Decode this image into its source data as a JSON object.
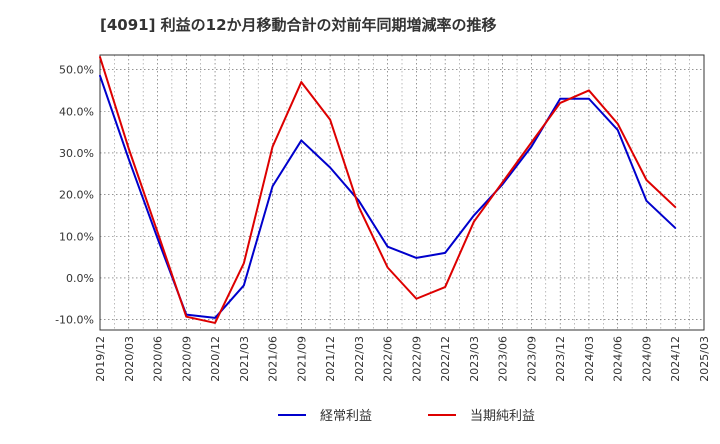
{
  "chart_data": {
    "type": "line",
    "title": "[4091]  利益の12か月移動合計の対前年同期増減率の推移",
    "xlabel": "",
    "ylabel": "",
    "ylim": [
      -12.5,
      53.5
    ],
    "yticks": [
      -10,
      0,
      10,
      20,
      30,
      40,
      50
    ],
    "ytick_labels": [
      "-10.0%",
      "0.0%",
      "10.0%",
      "20.0%",
      "30.0%",
      "40.0%",
      "50.0%"
    ],
    "categories": [
      "2019/12",
      "2020/03",
      "2020/06",
      "2020/09",
      "2020/12",
      "2021/03",
      "2021/06",
      "2021/09",
      "2021/12",
      "2022/03",
      "2022/06",
      "2022/09",
      "2022/12",
      "2023/03",
      "2023/06",
      "2023/09",
      "2023/12",
      "2024/03",
      "2024/06",
      "2024/09",
      "2024/12",
      "2025/03"
    ],
    "grid": true,
    "legend_position": "bottom",
    "series": [
      {
        "name": "経常利益",
        "color": "#0000cc",
        "values": [
          48.5,
          28.5,
          9.5,
          -8.8,
          -9.6,
          -1.8,
          22.0,
          33.0,
          26.5,
          18.5,
          7.5,
          4.8,
          6.0,
          15.0,
          22.5,
          31.5,
          43.0,
          43.0,
          35.5,
          18.5,
          12.0,
          null
        ]
      },
      {
        "name": "当期純利益",
        "color": "#dd0000",
        "values": [
          53.0,
          31.0,
          11.0,
          -9.3,
          -10.8,
          3.5,
          31.5,
          47.0,
          38.0,
          17.0,
          2.5,
          -5.0,
          -2.2,
          13.5,
          23.0,
          32.5,
          42.0,
          45.0,
          37.0,
          23.5,
          17.0,
          null
        ]
      }
    ]
  }
}
